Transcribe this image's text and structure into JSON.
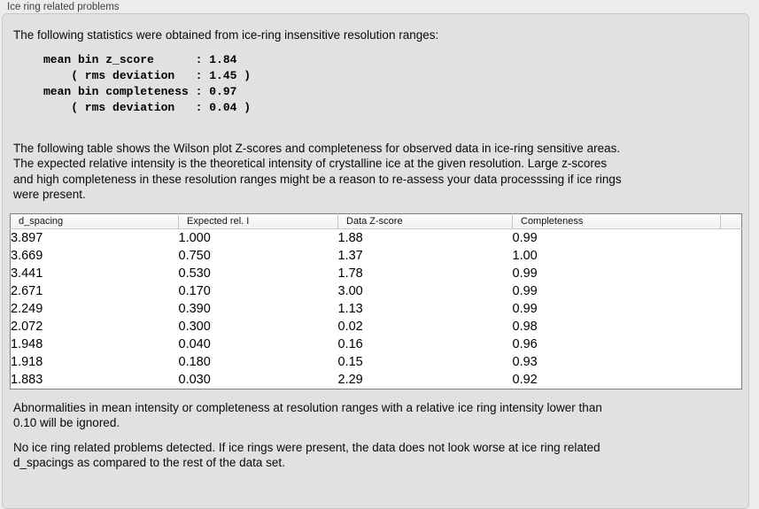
{
  "panel": {
    "title": "Ice ring related problems"
  },
  "intro": {
    "text": "The following statistics were obtained from ice-ring insensitive resolution ranges:",
    "stats_block": "mean bin z_score      : 1.84\n    ( rms deviation   : 1.45 )\nmean bin completeness : 0.97\n    ( rms deviation   : 0.04 )"
  },
  "description": "The following table shows the Wilson plot Z-scores and completeness for observed data in ice-ring sensitive areas.\nThe expected relative intensity is the theoretical intensity of crystalline ice at the given resolution. Large z-scores\nand high completeness in these resolution ranges might be a reason to re-assess your data processsing if ice rings\nwere present.",
  "table": {
    "columns": [
      "d_spacing",
      "Expected rel. I",
      "Data Z-score",
      "Completeness"
    ],
    "rows": [
      [
        "3.897",
        "1.000",
        "1.88",
        "0.99"
      ],
      [
        "3.669",
        "0.750",
        "1.37",
        "1.00"
      ],
      [
        "3.441",
        "0.530",
        "1.78",
        "0.99"
      ],
      [
        "2.671",
        "0.170",
        "3.00",
        "0.99"
      ],
      [
        "2.249",
        "0.390",
        "1.13",
        "0.99"
      ],
      [
        "2.072",
        "0.300",
        "0.02",
        "0.98"
      ],
      [
        "1.948",
        "0.040",
        "0.16",
        "0.96"
      ],
      [
        "1.918",
        "0.180",
        "0.15",
        "0.93"
      ],
      [
        "1.883",
        "0.030",
        "2.29",
        "0.92"
      ]
    ]
  },
  "footer": {
    "ignore_note": "Abnormalities in mean intensity or completeness at resolution ranges with a relative ice ring intensity lower than\n0.10 will be ignored.",
    "conclusion": "No ice ring related problems detected. If ice rings were present, the data does not look worse at ice ring related\nd_spacings as compared to the rest of the data set."
  },
  "colors": {
    "page_background": "#ececec",
    "groupbox_background": "#e1e1e1",
    "groupbox_border": "#c6c6c6",
    "table_border": "#7f7f7f",
    "table_background": "#ffffff"
  }
}
